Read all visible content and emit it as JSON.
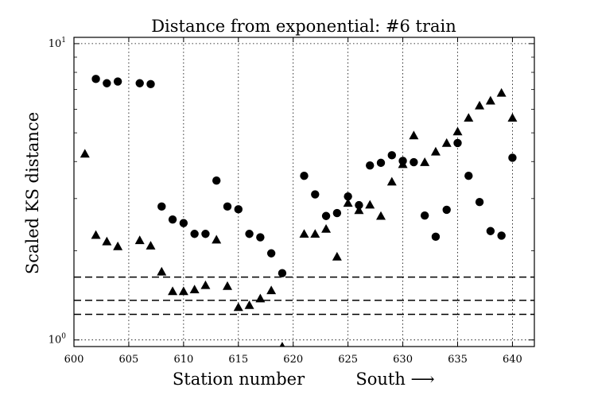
{
  "chart_data": {
    "type": "scatter",
    "title": "Distance from exponential: #6 train",
    "xlabel": "Station number",
    "xlabel_direction": "South ⟶",
    "ylabel": "Scaled KS distance",
    "y_scale": "log",
    "xlim": [
      600,
      642
    ],
    "ylim": [
      0.95,
      10.5
    ],
    "x_ticks": [
      600,
      605,
      610,
      615,
      620,
      625,
      630,
      635,
      640
    ],
    "x_tick_labels": [
      "600",
      "605",
      "610",
      "615",
      "620",
      "625",
      "630",
      "635",
      "640"
    ],
    "y_ticks": [
      {
        "value": 1,
        "base": "10",
        "exp": "0"
      },
      {
        "value": 10,
        "base": "10",
        "exp": "1"
      }
    ],
    "grid": "dotted",
    "reference_lines": [
      1.63,
      1.36,
      1.22
    ],
    "series": [
      {
        "marker": "circle",
        "points": [
          [
            602,
            7.6
          ],
          [
            603,
            7.35
          ],
          [
            604,
            7.45
          ],
          [
            606,
            7.35
          ],
          [
            607,
            7.3
          ],
          [
            608,
            2.82
          ],
          [
            609,
            2.55
          ],
          [
            610,
            2.48
          ],
          [
            611,
            2.28
          ],
          [
            612,
            2.28
          ],
          [
            613,
            3.45
          ],
          [
            614,
            2.82
          ],
          [
            615,
            2.76
          ],
          [
            616,
            2.28
          ],
          [
            617,
            2.22
          ],
          [
            618,
            1.96
          ],
          [
            619,
            1.68
          ],
          [
            621,
            3.58
          ],
          [
            622,
            3.1
          ],
          [
            623,
            2.62
          ],
          [
            624,
            2.68
          ],
          [
            625,
            3.05
          ],
          [
            626,
            2.85
          ],
          [
            627,
            3.88
          ],
          [
            628,
            3.96
          ],
          [
            629,
            4.2
          ],
          [
            630,
            4.02
          ],
          [
            631,
            3.98
          ],
          [
            632,
            2.63
          ],
          [
            633,
            2.23
          ],
          [
            634,
            2.75
          ],
          [
            635,
            4.62
          ],
          [
            636,
            3.58
          ],
          [
            637,
            2.92
          ],
          [
            638,
            2.33
          ],
          [
            639,
            2.25
          ],
          [
            640,
            4.12
          ]
        ]
      },
      {
        "marker": "triangle",
        "points": [
          [
            601,
            4.25
          ],
          [
            602,
            2.26
          ],
          [
            603,
            2.15
          ],
          [
            604,
            2.07
          ],
          [
            606,
            2.17
          ],
          [
            607,
            2.08
          ],
          [
            608,
            1.7
          ],
          [
            609,
            1.46
          ],
          [
            610,
            1.46
          ],
          [
            611,
            1.48
          ],
          [
            612,
            1.53
          ],
          [
            613,
            2.18
          ],
          [
            614,
            1.52
          ],
          [
            615,
            1.29
          ],
          [
            616,
            1.31
          ],
          [
            617,
            1.38
          ],
          [
            618,
            1.47
          ],
          [
            619,
            0.95
          ],
          [
            621,
            2.28
          ],
          [
            622,
            2.28
          ],
          [
            623,
            2.37
          ],
          [
            624,
            1.91
          ],
          [
            625,
            2.9
          ],
          [
            626,
            2.74
          ],
          [
            627,
            2.86
          ],
          [
            628,
            2.62
          ],
          [
            629,
            3.42
          ],
          [
            630,
            3.92
          ],
          [
            631,
            4.9
          ],
          [
            632,
            3.98
          ],
          [
            633,
            4.32
          ],
          [
            634,
            4.62
          ],
          [
            635,
            5.05
          ],
          [
            636,
            5.62
          ],
          [
            637,
            6.18
          ],
          [
            638,
            6.42
          ],
          [
            639,
            6.82
          ],
          [
            640,
            5.62
          ]
        ]
      }
    ]
  }
}
